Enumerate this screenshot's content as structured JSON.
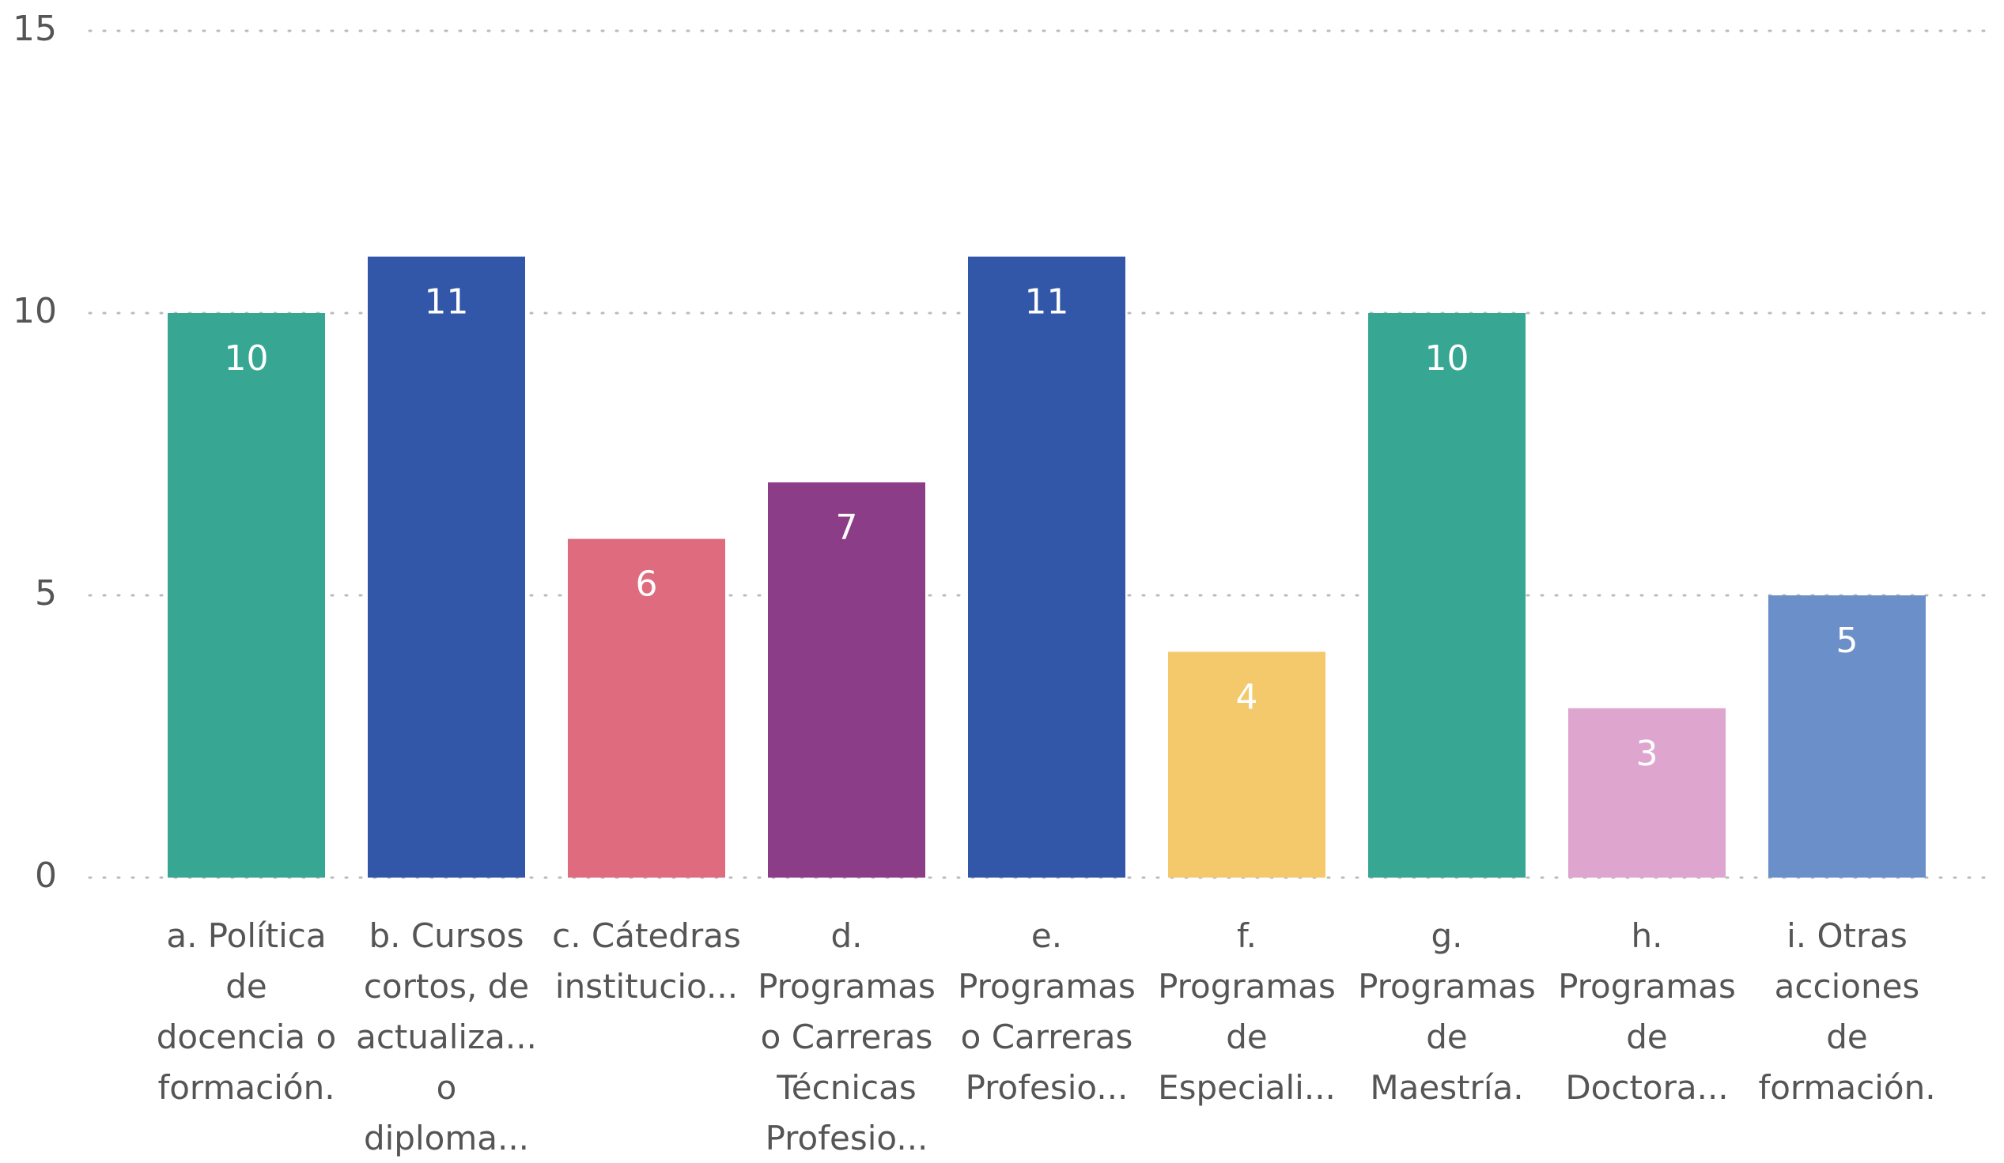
{
  "chart_data": {
    "type": "bar",
    "categories": [
      "a. Política de docencia o formación.",
      "b. Cursos cortos, de actualiza... o diploma...",
      "c. Cátedras institucio...",
      "d. Programas o Carreras Técnicas Profesio...",
      "e. Programas o Carreras Profesio...",
      "f. Programas de Especiali...",
      "g. Programas de Maestría.",
      "h. Programas de Doctora...",
      "i. Otras acciones de formación."
    ],
    "values": [
      10,
      11,
      6,
      7,
      11,
      4,
      10,
      3,
      5
    ],
    "colors": [
      "#37a794",
      "#3257a8",
      "#de6b7e",
      "#8b3d88",
      "#3257a8",
      "#f3c96b",
      "#37a794",
      "#dea5cf",
      "#6b8fc9"
    ],
    "ylim": [
      0,
      15
    ],
    "yticks": [
      0,
      5,
      10,
      15
    ],
    "grid": true
  }
}
